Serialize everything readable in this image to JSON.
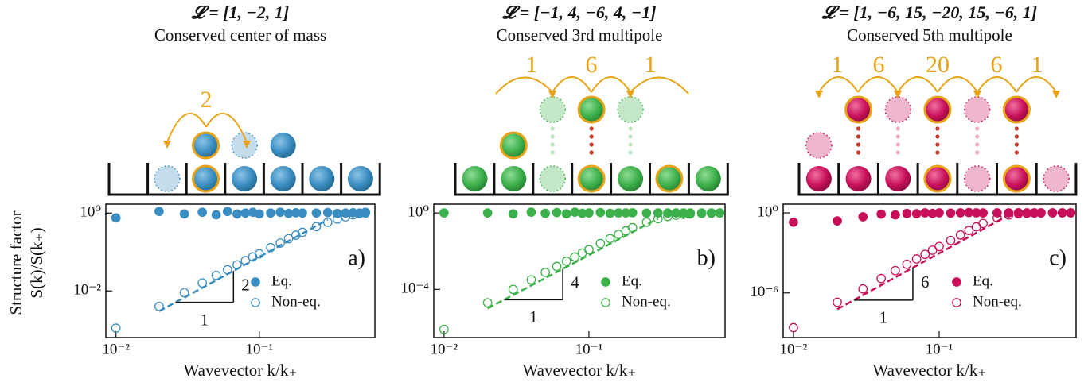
{
  "chart_data": [
    {
      "type": "scatter",
      "title": "𝓛 = [1, −2, 1]",
      "subtitle": "Conserved center of mass",
      "diagram_labels": [
        "2"
      ],
      "panel_label": "a)",
      "xlabel": "Wavevector k/k₊",
      "ylabel": [
        "Structure factor",
        "S(k)/S(k₊)"
      ],
      "xscale": "log",
      "yscale": "log",
      "legend": "lower right",
      "xlim": [
        0.0085,
        0.64
      ],
      "ylim": [
        0.00063,
        1.7
      ],
      "xticks": [
        {
          "value": 0.01,
          "label": "10⁻²"
        },
        {
          "value": 0.1,
          "label": "10⁻¹"
        }
      ],
      "yticks": [
        {
          "value": 0.01,
          "label": "10⁻²"
        },
        {
          "value": 1,
          "label": "10⁰"
        }
      ],
      "x": [
        0.01,
        0.02,
        0.03,
        0.04,
        0.05,
        0.06,
        0.07,
        0.08,
        0.09,
        0.1,
        0.12,
        0.14,
        0.16,
        0.18,
        0.2,
        0.25,
        0.3,
        0.35,
        0.4,
        0.45,
        0.5,
        0.55
      ],
      "series": [
        {
          "name": "Eq.",
          "color": "#3a8dc1",
          "marker": "filled",
          "values": [
            0.75,
            1.1,
            0.95,
            1.05,
            0.9,
            1.1,
            0.95,
            1.0,
            1.05,
            0.95,
            1.0,
            1.05,
            0.98,
            1.02,
            1.0,
            1.0,
            1.03,
            0.98,
            1.0,
            1.02,
            1.0,
            1.05
          ]
        },
        {
          "name": "Non-eq.",
          "color": "#3a8dc1",
          "marker": "open",
          "values": [
            0.0011,
            0.004,
            0.009,
            0.016,
            0.025,
            0.035,
            0.047,
            0.06,
            0.075,
            0.09,
            0.13,
            0.17,
            0.22,
            0.27,
            0.32,
            0.45,
            0.58,
            0.7,
            0.8,
            0.9,
            0.97,
            1.0
          ]
        }
      ],
      "fit": {
        "x": [
          0.02,
          0.3
        ],
        "y": [
          0.003,
          0.675
        ]
      },
      "slope_triangle": {
        "x": [
          0.026,
          0.066
        ],
        "run_label": "1",
        "rise_label": "2"
      }
    },
    {
      "type": "scatter",
      "title": "𝓛 = [−1, 4, −6, 4, −1]",
      "subtitle": "Conserved 3rd multipole",
      "diagram_labels": [
        "1",
        "6",
        "1"
      ],
      "panel_label": "b)",
      "xlabel": "Wavevector k/k₊",
      "xscale": "log",
      "yscale": "log",
      "legend": "lower right",
      "xlim": [
        0.0085,
        0.87
      ],
      "ylim": [
        3e-07,
        2.9
      ],
      "xticks": [
        {
          "value": 0.01,
          "label": "10⁻²"
        },
        {
          "value": 0.1,
          "label": "10⁻¹"
        }
      ],
      "yticks": [
        {
          "value": 0.0001,
          "label": "10⁻⁴"
        },
        {
          "value": 1,
          "label": "10⁰"
        }
      ],
      "x": [
        0.01,
        0.02,
        0.03,
        0.04,
        0.05,
        0.06,
        0.07,
        0.08,
        0.09,
        0.1,
        0.12,
        0.14,
        0.16,
        0.18,
        0.2,
        0.25,
        0.3,
        0.35,
        0.4,
        0.45,
        0.5,
        0.6,
        0.7,
        0.8
      ],
      "series": [
        {
          "name": "Eq.",
          "color": "#3cb04a",
          "marker": "filled",
          "values": [
            1.0,
            1.0,
            0.9,
            1.1,
            0.95,
            1.05,
            0.9,
            1.1,
            0.95,
            1.0,
            1.05,
            0.95,
            1.0,
            1.0,
            1.02,
            0.98,
            1.0,
            1.0,
            1.0,
            1.0,
            1.0,
            1.0,
            1.0,
            1.0
          ]
        },
        {
          "name": "Non-eq.",
          "color": "#3cb04a",
          "marker": "open",
          "values": [
            8e-07,
            2e-05,
            0.0001,
            0.00032,
            0.00078,
            0.0016,
            0.003,
            0.005,
            0.008,
            0.012,
            0.025,
            0.046,
            0.076,
            0.116,
            0.17,
            0.33,
            0.5,
            0.65,
            0.76,
            0.84,
            0.89,
            0.94,
            0.97,
            0.99
          ]
        }
      ],
      "fit": {
        "x": [
          0.02,
          0.3
        ],
        "y": [
          1e-05,
          0.51
        ]
      },
      "slope_triangle": {
        "x": [
          0.026,
          0.066
        ],
        "run_label": "1",
        "rise_label": "4"
      }
    },
    {
      "type": "scatter",
      "title": "𝓛 = [1, −6, 15, −20, 15, −6, 1]",
      "subtitle": "Conserved 5th multipole",
      "diagram_labels": [
        "1",
        "6",
        "20",
        "6",
        "1"
      ],
      "panel_label": "c)",
      "xlabel": "Wavevector k/k₊",
      "xscale": "log",
      "yscale": "log",
      "legend": "lower right",
      "xlim": [
        0.0085,
        0.87
      ],
      "ylim": [
        4.5e-10,
        4.5
      ],
      "xticks": [
        {
          "value": 0.01,
          "label": "10⁻²"
        },
        {
          "value": 0.1,
          "label": "10⁻¹"
        }
      ],
      "yticks": [
        {
          "value": 1e-06,
          "label": "10⁻⁶"
        },
        {
          "value": 1,
          "label": "10⁰"
        }
      ],
      "x": [
        0.01,
        0.02,
        0.03,
        0.04,
        0.05,
        0.06,
        0.07,
        0.08,
        0.09,
        0.1,
        0.12,
        0.14,
        0.16,
        0.18,
        0.2,
        0.25,
        0.3,
        0.35,
        0.4,
        0.45,
        0.5,
        0.6,
        0.7,
        0.8
      ],
      "series": [
        {
          "name": "Eq.",
          "color": "#c8105a",
          "marker": "filled",
          "values": [
            0.2,
            0.25,
            0.5,
            0.8,
            0.7,
            0.9,
            0.85,
            1.0,
            0.9,
            1.0,
            0.95,
            1.0,
            1.05,
            1.0,
            0.98,
            1.0,
            1.0,
            1.02,
            1.0,
            1.0,
            1.0,
            1.0,
            1.0,
            1.0
          ]
        },
        {
          "name": "Non-eq.",
          "color": "#c8105a",
          "marker": "open",
          "values": [
            2.5e-09,
            2e-07,
            2e-06,
            1.2e-05,
            4.7e-05,
            0.00014,
            0.00035,
            0.00078,
            0.0016,
            0.003,
            0.0085,
            0.022,
            0.048,
            0.09,
            0.16,
            0.42,
            0.69,
            0.85,
            0.92,
            0.96,
            0.98,
            0.99,
            1.0,
            1.0
          ]
        }
      ],
      "fit": {
        "x": [
          0.02,
          0.3
        ],
        "y": [
          6e-08,
          0.68
        ]
      },
      "slope_triangle": {
        "x": [
          0.026,
          0.066
        ],
        "run_label": "1",
        "rise_label": "6"
      }
    }
  ]
}
